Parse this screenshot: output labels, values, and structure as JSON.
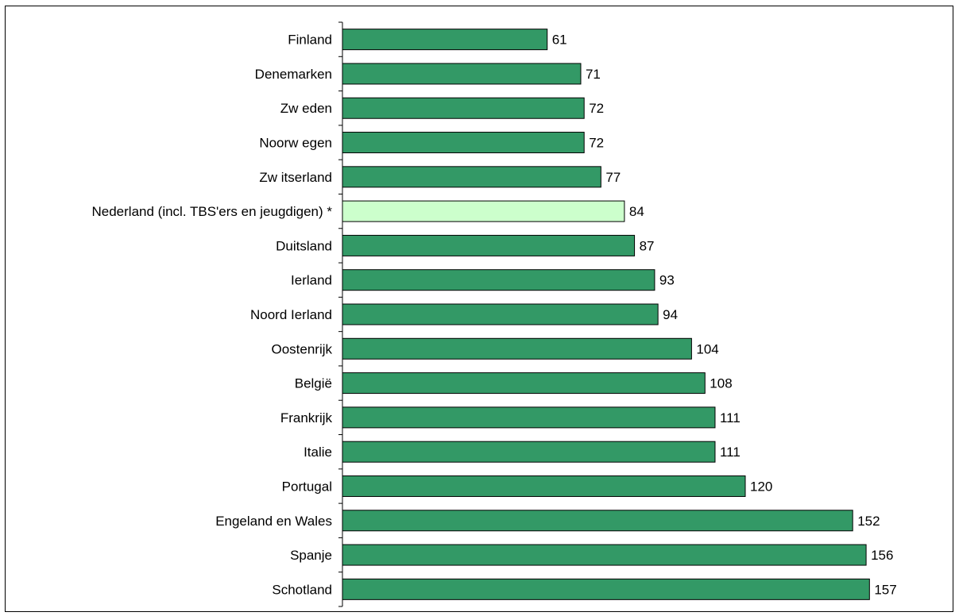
{
  "chart_data": {
    "type": "bar",
    "orientation": "horizontal",
    "categories": [
      "Finland",
      "Denemarken",
      "Zw eden",
      "Noorw egen",
      "Zw itserland",
      "Nederland (incl. TBS'ers en jeugdigen) *",
      "Duitsland",
      "Ierland",
      "Noord Ierland",
      "Oostenrijk",
      "België",
      "Frankrijk",
      "Italie",
      "Portugal",
      "Engeland en Wales",
      "Spanje",
      "Schotland"
    ],
    "values": [
      61,
      71,
      72,
      72,
      77,
      84,
      87,
      93,
      94,
      104,
      108,
      111,
      111,
      120,
      152,
      156,
      157
    ],
    "highlight_category": "Nederland (incl. TBS'ers en jeugdigen) *",
    "colors": {
      "bar": "#339966",
      "highlight": "#CCFFCC",
      "outline": "#000000"
    },
    "xlim": [
      0,
      160
    ],
    "grid": false,
    "legend": "none",
    "title": "",
    "xlabel": "",
    "ylabel": ""
  }
}
